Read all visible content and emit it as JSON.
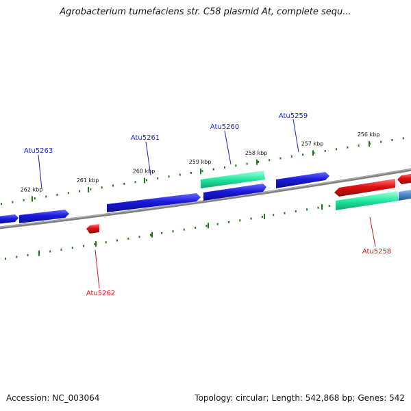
{
  "title": "Agrobacterium tumefaciens str. C58 plasmid At, complete sequ...",
  "footer": {
    "accession": "Accession: NC_003064",
    "summary": "Topology: circular; Length: 542,868 bp; Genes: 542"
  },
  "scale": {
    "labels": [
      "262 kbp",
      "261 kbp",
      "260 kbp",
      "259 kbp",
      "258 kbp",
      "257 kbp",
      "256 kbp"
    ]
  },
  "genes": {
    "forward": [
      "Atu5263",
      "Atu5261",
      "Atu5260",
      "Atu5259"
    ],
    "reverse": [
      "Atu5262",
      "Atu5258"
    ]
  },
  "colors": {
    "forward_gene": "#1a1adc",
    "reverse_gene": "#e01010",
    "highlight_gene": "#20e8a0",
    "steel_gene": "#4a88c8",
    "backbone": "#808080",
    "tick": "#1a7a1a",
    "forward_label": "#1a1adc",
    "reverse_label": "#e01010"
  }
}
